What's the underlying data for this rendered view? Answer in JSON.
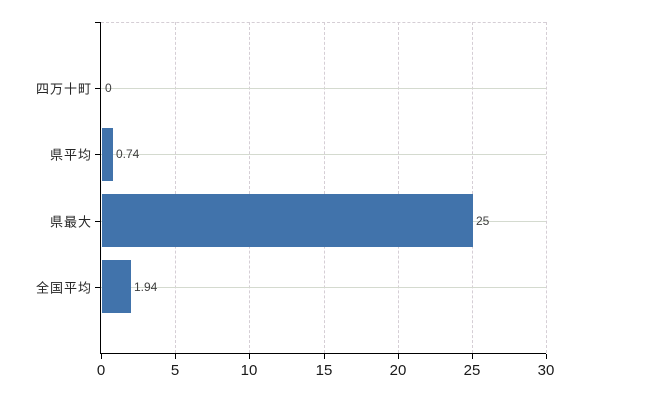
{
  "chart_data": {
    "type": "bar",
    "orientation": "horizontal",
    "title": "",
    "xlabel": "",
    "ylabel": "",
    "categories": [
      "四万十町",
      "県平均",
      "県最大",
      "全国平均"
    ],
    "values": [
      0,
      0.74,
      25,
      1.94
    ],
    "data_labels": [
      "0",
      "0.74",
      "25",
      "1.94"
    ],
    "x_ticks": [
      0,
      5,
      10,
      15,
      20,
      25,
      30
    ],
    "x_tick_labels": [
      "0",
      "5",
      "10",
      "15",
      "20",
      "25",
      "30"
    ],
    "xlim": [
      0,
      30
    ],
    "grid": true,
    "legend": false,
    "colors": {
      "bar": "#4173ab",
      "axis": "#000000",
      "grid_vertical": "#d5ced5",
      "grid_horizontal": "#d4dacf",
      "category_text": "#262626",
      "data_label_text": "#3f3f3f",
      "tick_label_text": "#1a1a1a",
      "background": "#ffffff"
    }
  }
}
